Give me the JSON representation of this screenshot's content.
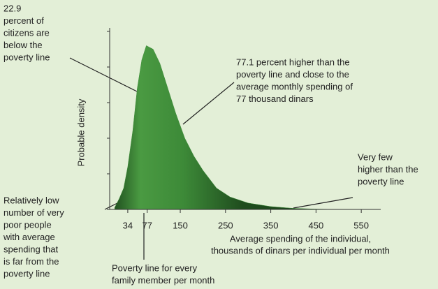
{
  "chart_data": {
    "type": "area",
    "x_label": [
      "Average spending of the individual,",
      "thousands of dinars per individual per month"
    ],
    "y_label": "Probable density",
    "x": [
      5,
      15,
      25,
      34,
      45,
      55,
      65,
      75,
      90,
      105,
      120,
      140,
      160,
      180,
      200,
      230,
      260,
      300,
      350,
      400,
      450,
      500
    ],
    "values": [
      0.05,
      0.3,
      0.6,
      1.2,
      2.2,
      3.4,
      4.2,
      4.6,
      4.5,
      4.1,
      3.5,
      2.7,
      2.0,
      1.5,
      1.1,
      0.6,
      0.35,
      0.18,
      0.08,
      0.03,
      0.01,
      0
    ],
    "color": "#3f8f3a",
    "xlim": [
      -6,
      593
    ],
    "xticks": [
      34,
      77,
      150,
      250,
      350,
      450,
      550
    ],
    "ylim": [
      0,
      5
    ],
    "annotations": [
      [
        "22.9",
        "percent of",
        "citizens are",
        "below the",
        "poverty line"
      ],
      [
        "77.1 percent higher than the",
        "poverty line and close to the",
        "average monthly spending of",
        "77 thousand dinars"
      ],
      [
        "Very few",
        "higher than the",
        "poverty line"
      ],
      [
        "Relatively low",
        "number of very",
        "poor people",
        "with average",
        "spending that",
        "is far from the",
        "poverty line"
      ],
      [
        "Poverty line for every",
        "family member per month"
      ]
    ]
  }
}
